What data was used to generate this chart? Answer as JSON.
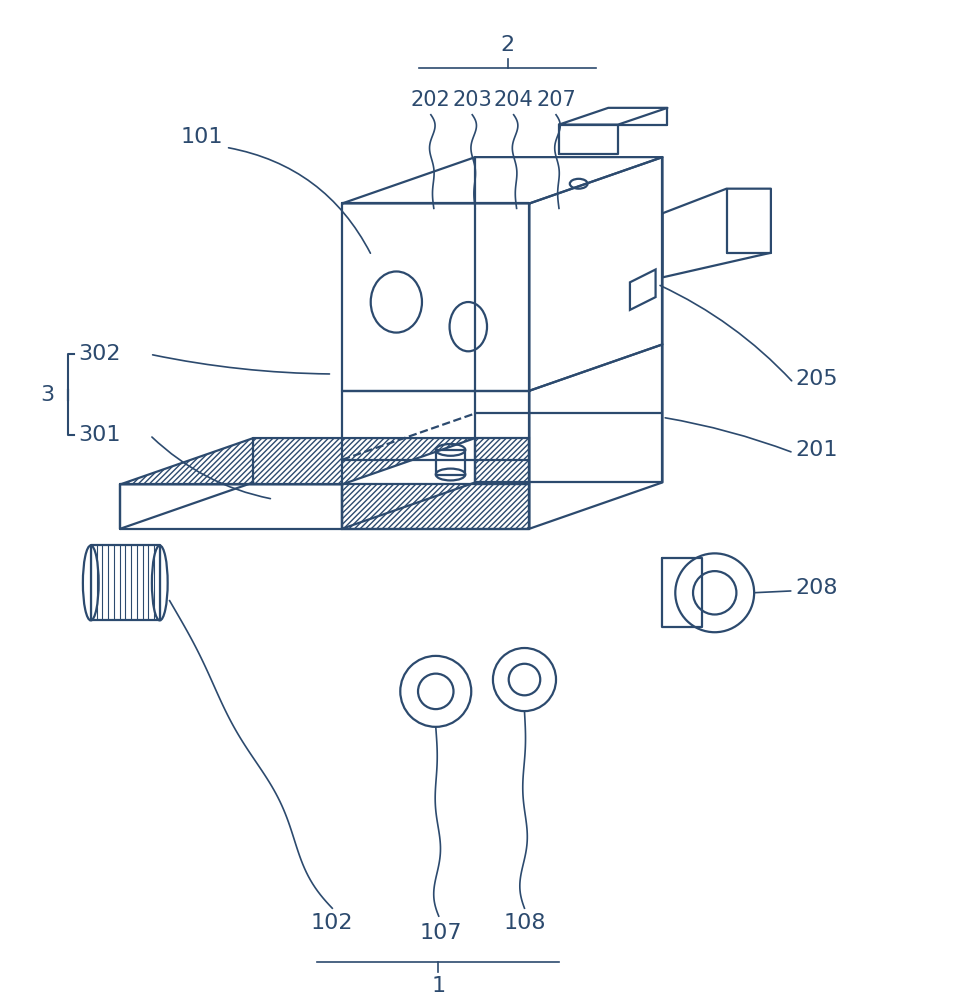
{
  "bg_color": "#ffffff",
  "line_color": "#2c4a6e",
  "text_color": "#2c4a6e",
  "lw": 1.6
}
